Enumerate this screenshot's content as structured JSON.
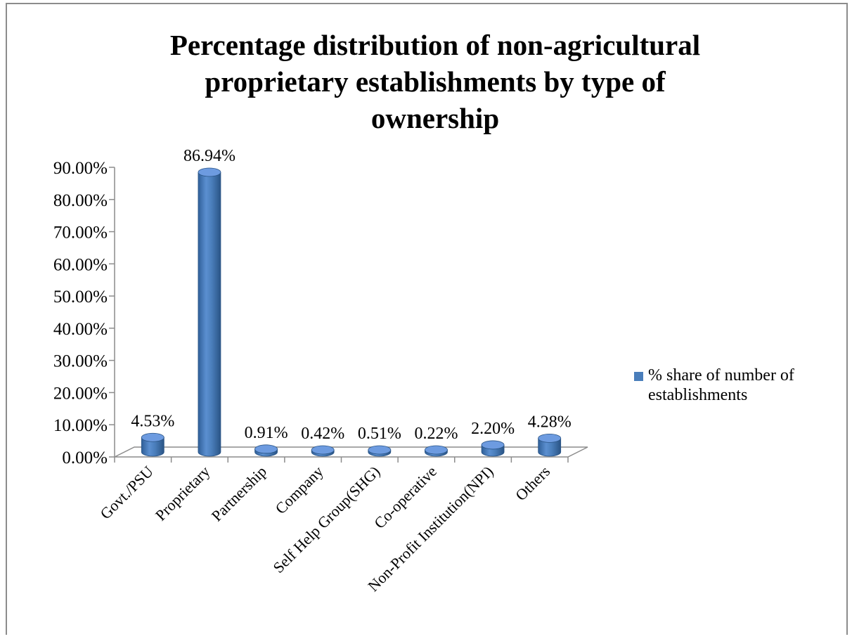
{
  "chart_data": {
    "type": "bar",
    "title_lines": [
      "Percentage distribution of non-agricultural",
      "proprietary establishments by type of",
      "ownership"
    ],
    "categories": [
      "Govt./PSU",
      "Proprietary",
      "Partnership",
      "Company",
      "Self Help Group(SHG)",
      "Co-operative",
      "Non-Profit Institution(NPI)",
      "Others"
    ],
    "series": [
      {
        "name": "% share of number of establishments",
        "values": [
          4.53,
          86.94,
          0.91,
          0.42,
          0.51,
          0.22,
          2.2,
          4.28
        ],
        "labels": [
          "4.53%",
          "86.94%",
          "0.91%",
          "0.42%",
          "0.51%",
          "0.22%",
          "2.20%",
          "4.28%"
        ]
      }
    ],
    "y_ticks": [
      "0.00%",
      "10.00%",
      "20.00%",
      "30.00%",
      "40.00%",
      "50.00%",
      "60.00%",
      "70.00%",
      "80.00%",
      "90.00%"
    ],
    "ylim": [
      0,
      90
    ],
    "xlabel": "",
    "ylabel": "",
    "legend_position": "right",
    "style": "3d-cylinder",
    "bar_color": "#4a7ebb"
  }
}
